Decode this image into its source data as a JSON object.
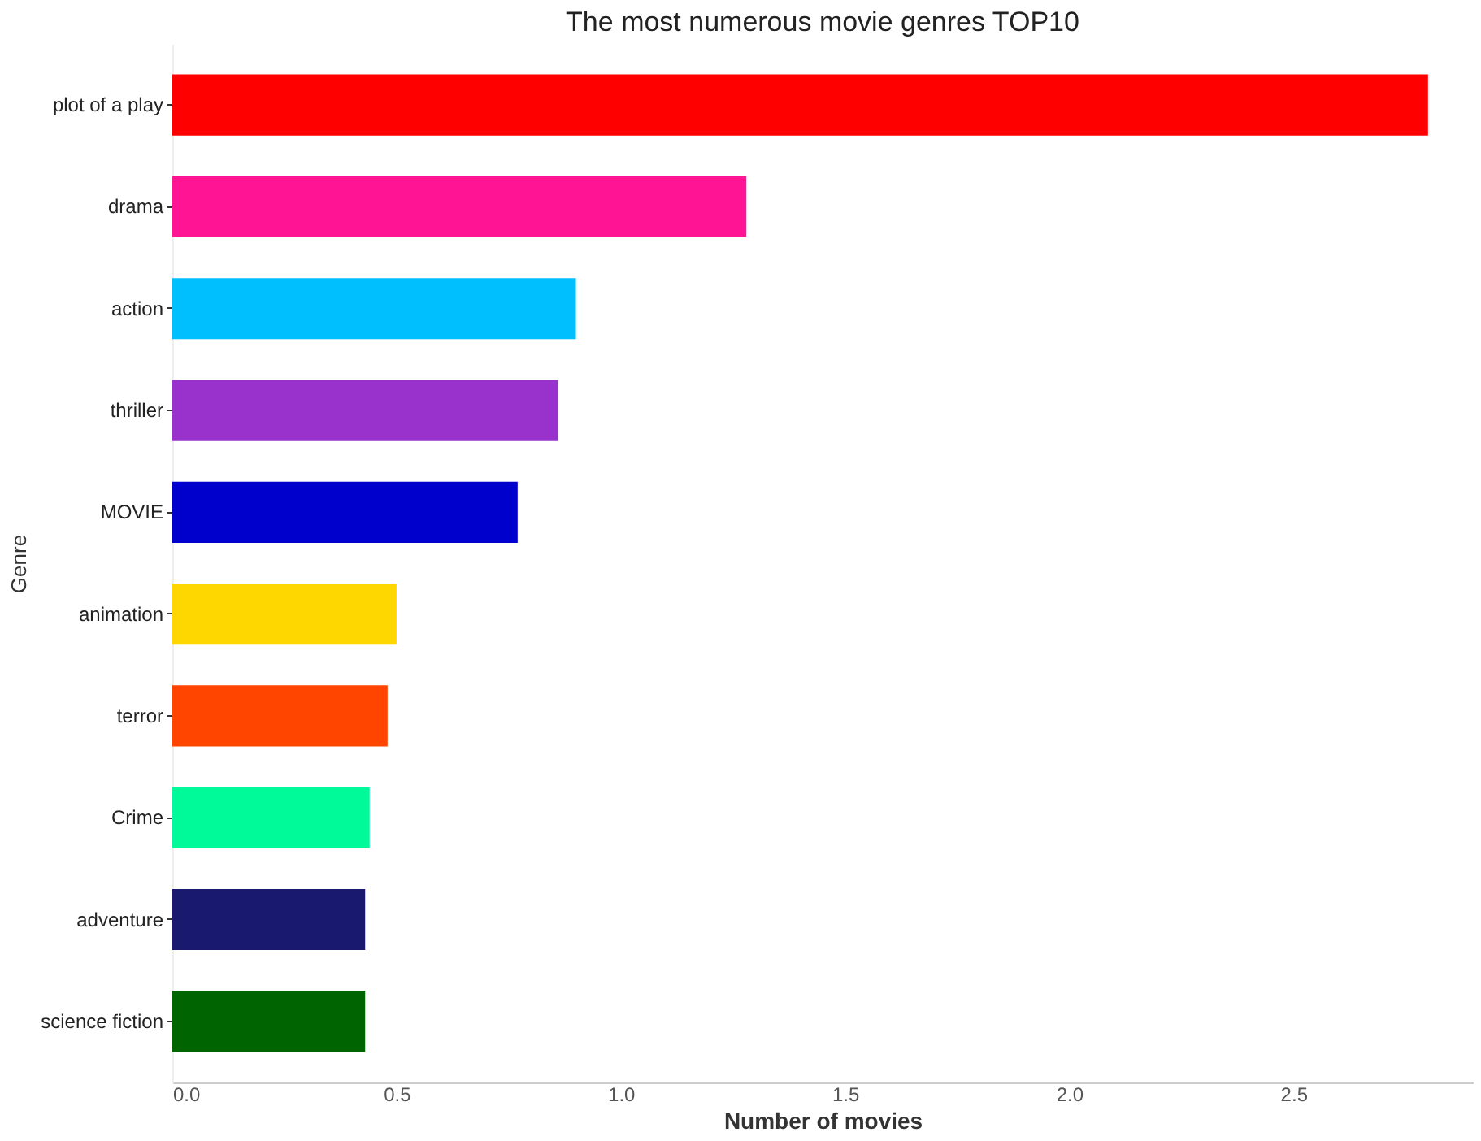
{
  "chart_data": {
    "type": "bar",
    "orientation": "horizontal",
    "title": "The most numerous movie genres TOP10",
    "xlabel": "Number of movies",
    "ylabel": "Genre",
    "categories": [
      "plot of a play",
      "drama",
      "action",
      "thriller",
      "MOVIE",
      "animation",
      "terror",
      "Crime",
      "adventure",
      "science fiction"
    ],
    "values": [
      2.8,
      1.28,
      0.9,
      0.86,
      0.77,
      0.5,
      0.48,
      0.44,
      0.43,
      0.43
    ],
    "colors": [
      "#ff0000",
      "#ff1493",
      "#00bfff",
      "#9932cc",
      "#0000cd",
      "#ffd700",
      "#ff4500",
      "#00fa9a",
      "#191970",
      "#006400"
    ],
    "xlim": [
      0,
      2.9
    ],
    "xticks": [
      {
        "value": 0,
        "label": "0.0"
      },
      {
        "value": 0.5,
        "label": "0.5"
      },
      {
        "value": 1,
        "label": "1.0"
      },
      {
        "value": 1.5,
        "label": "1.5"
      },
      {
        "value": 2,
        "label": "2.0"
      },
      {
        "value": 2.5,
        "label": "2.5"
      }
    ],
    "grid": false
  }
}
